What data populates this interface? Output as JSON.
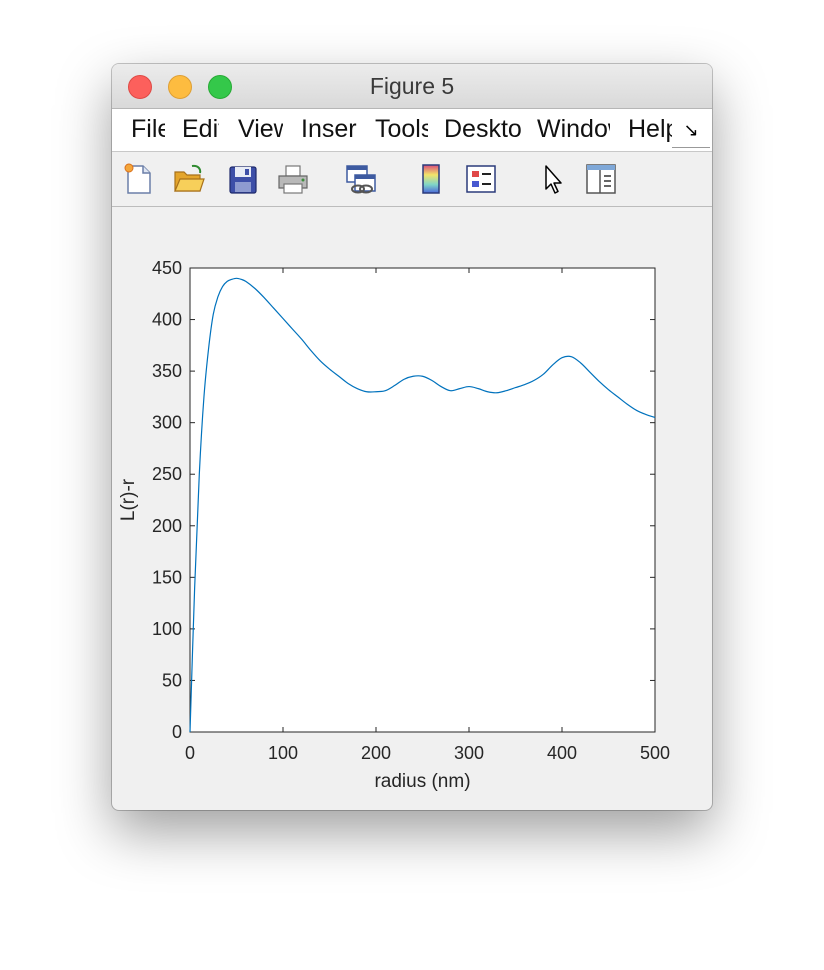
{
  "window": {
    "title": "Figure 5"
  },
  "menu": {
    "items": [
      "File",
      "Edit",
      "View",
      "Insert",
      "Tools",
      "Desktop",
      "Window",
      "Help"
    ],
    "overflow_icon": "chevron-more-icon",
    "overflow_glyph": "↘"
  },
  "toolbar": {
    "tools": [
      {
        "name": "new-figure-icon"
      },
      {
        "name": "open-file-icon"
      },
      {
        "name": "save-icon"
      },
      {
        "name": "print-icon"
      },
      {
        "name": "link-plot-icon"
      },
      {
        "name": "colorbar-icon"
      },
      {
        "name": "legend-icon"
      },
      {
        "name": "edit-plot-pointer-icon"
      },
      {
        "name": "property-inspector-icon"
      }
    ]
  },
  "chart_data": {
    "type": "line",
    "title": "",
    "xlabel": "radius (nm)",
    "ylabel": "L(r)-r",
    "xlim": [
      0,
      500
    ],
    "ylim": [
      0,
      450
    ],
    "xticks": [
      0,
      100,
      200,
      300,
      400,
      500
    ],
    "yticks": [
      0,
      50,
      100,
      150,
      200,
      250,
      300,
      350,
      400,
      450
    ],
    "grid": false,
    "series": [
      {
        "color": "#0072bd",
        "x": [
          0,
          5,
          10,
          15,
          20,
          25,
          30,
          35,
          40,
          45,
          50,
          55,
          60,
          70,
          80,
          90,
          100,
          110,
          120,
          130,
          140,
          150,
          160,
          170,
          180,
          190,
          200,
          210,
          220,
          230,
          240,
          250,
          260,
          270,
          280,
          290,
          300,
          310,
          320,
          330,
          340,
          350,
          360,
          370,
          380,
          390,
          400,
          410,
          420,
          430,
          440,
          450,
          460,
          470,
          480,
          490,
          500
        ],
        "y": [
          0,
          140,
          250,
          325,
          372,
          405,
          422,
          432,
          437,
          439,
          440,
          439,
          437,
          430,
          421,
          411,
          401,
          391,
          381,
          370,
          360,
          352,
          345,
          338,
          333,
          330,
          330,
          331,
          336,
          342,
          345,
          345,
          341,
          335,
          331,
          333,
          335,
          333,
          330,
          329,
          331,
          334,
          337,
          341,
          347,
          356,
          363,
          364,
          358,
          349,
          340,
          332,
          325,
          318,
          312,
          308,
          305
        ]
      }
    ]
  }
}
